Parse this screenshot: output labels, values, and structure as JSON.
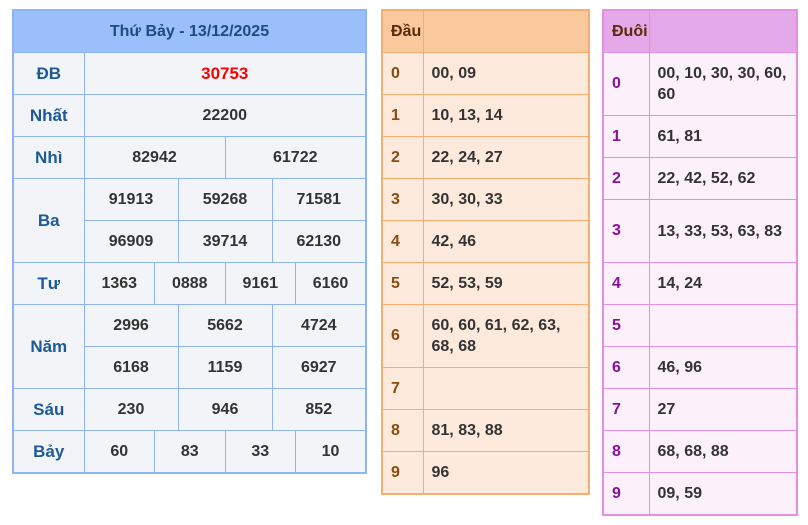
{
  "results": {
    "title": "Thứ Bảy - 13/12/2025",
    "prizes": [
      {
        "label": "ĐB",
        "rows": [
          [
            "30753"
          ]
        ]
      },
      {
        "label": "Nhất",
        "rows": [
          [
            "22200"
          ]
        ]
      },
      {
        "label": "Nhì",
        "rows": [
          [
            "82942",
            "61722"
          ]
        ]
      },
      {
        "label": "Ba",
        "rows": [
          [
            "91913",
            "59268",
            "71581"
          ],
          [
            "96909",
            "39714",
            "62130"
          ]
        ]
      },
      {
        "label": "Tư",
        "rows": [
          [
            "1363",
            "0888",
            "9161",
            "6160"
          ]
        ]
      },
      {
        "label": "Năm",
        "rows": [
          [
            "2996",
            "5662",
            "4724"
          ],
          [
            "6168",
            "1159",
            "6927"
          ]
        ]
      },
      {
        "label": "Sáu",
        "rows": [
          [
            "230",
            "946",
            "852"
          ]
        ]
      },
      {
        "label": "Bảy",
        "rows": [
          [
            "60",
            "83",
            "33",
            "10"
          ]
        ]
      }
    ],
    "special_color": "#ff0000"
  },
  "dau": {
    "header": "Đầu",
    "rows": [
      {
        "k": "0",
        "v": "00, 09"
      },
      {
        "k": "1",
        "v": "10, 13, 14"
      },
      {
        "k": "2",
        "v": "22, 24, 27"
      },
      {
        "k": "3",
        "v": "30, 30, 33"
      },
      {
        "k": "4",
        "v": "42, 46"
      },
      {
        "k": "5",
        "v": "52, 53, 59"
      },
      {
        "k": "6",
        "v": "60, 60, 61, 62, 63, 68, 68"
      },
      {
        "k": "7",
        "v": ""
      },
      {
        "k": "8",
        "v": "81, 83, 88"
      },
      {
        "k": "9",
        "v": "96"
      }
    ]
  },
  "duoi": {
    "header": "Đuôi",
    "rows": [
      {
        "k": "0",
        "v": "00, 10, 30, 30, 60, 60"
      },
      {
        "k": "1",
        "v": "61, 81"
      },
      {
        "k": "2",
        "v": "22, 42, 52, 62"
      },
      {
        "k": "3",
        "v": "13, 33, 53, 63, 83"
      },
      {
        "k": "4",
        "v": "14, 24"
      },
      {
        "k": "5",
        "v": ""
      },
      {
        "k": "6",
        "v": "46, 96"
      },
      {
        "k": "7",
        "v": "27"
      },
      {
        "k": "8",
        "v": "68, 68, 88"
      },
      {
        "k": "9",
        "v": "09, 59"
      }
    ]
  }
}
